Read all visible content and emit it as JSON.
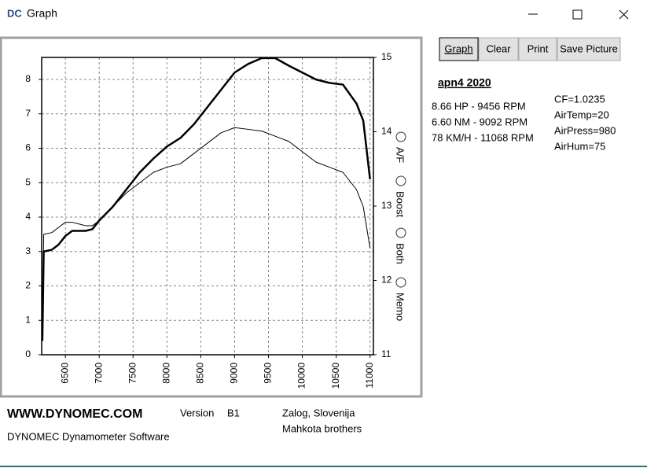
{
  "window": {
    "icon_text": "DC",
    "title": "Graph",
    "buttons": [
      "Graph",
      "Clear",
      "Print",
      "Save Picture"
    ],
    "radio_options": [
      "A/F",
      "Boost",
      "Both",
      "Memo"
    ],
    "run_name": "apn4  2020",
    "results": [
      "8.66 HP - 9456 RPM",
      "6.60 NM - 9092 RPM",
      "78 KM/H - 11068 RPM"
    ],
    "conditions": [
      "CF=1.0235",
      "AirTemp=20",
      "AirPress=980",
      "AirHum=75"
    ],
    "footer": {
      "site": "WWW.DYNOMEC.COM",
      "version_label": "Version",
      "version": "B1",
      "software": "DYNOMEC Dynamometer Software",
      "location": "Zalog, Slovenija",
      "authors": "Mahkota brothers"
    }
  },
  "chart_data": {
    "type": "line",
    "x": [
      6160,
      6180,
      6300,
      6400,
      6500,
      6600,
      6700,
      6800,
      6900,
      7000,
      7200,
      7400,
      7600,
      7800,
      8000,
      8200,
      8400,
      8600,
      8800,
      9000,
      9200,
      9400,
      9600,
      9800,
      10000,
      10200,
      10400,
      10600,
      10800,
      10900,
      11000
    ],
    "series": [
      {
        "color": "#000000",
        "width": 2.5,
        "values": [
          0.4,
          3.0,
          3.05,
          3.2,
          3.45,
          3.6,
          3.6,
          3.6,
          3.65,
          3.9,
          4.3,
          4.8,
          5.3,
          5.7,
          6.05,
          6.3,
          6.7,
          7.2,
          7.7,
          8.2,
          8.45,
          8.62,
          8.62,
          8.4,
          8.2,
          8.0,
          7.9,
          7.85,
          7.3,
          6.8,
          5.1
        ]
      },
      {
        "color": "#000000",
        "width": 1,
        "values": [
          0.5,
          3.5,
          3.55,
          3.7,
          3.85,
          3.85,
          3.8,
          3.75,
          3.75,
          3.9,
          4.3,
          4.7,
          5.0,
          5.3,
          5.45,
          5.55,
          5.85,
          6.15,
          6.45,
          6.6,
          6.55,
          6.5,
          6.35,
          6.2,
          5.9,
          5.6,
          5.45,
          5.3,
          4.8,
          4.3,
          3.1
        ]
      }
    ],
    "xlim": [
      6150,
      11050
    ],
    "xticks": [
      6500,
      7000,
      7500,
      8000,
      8500,
      9000,
      9500,
      10000,
      10500,
      11000
    ],
    "ylim": [
      0,
      8.64
    ],
    "yticks": [
      0,
      1,
      2,
      3,
      4,
      5,
      6,
      7,
      8
    ],
    "y2lim": [
      11,
      15
    ],
    "y2ticks": [
      11,
      12,
      13,
      14,
      15
    ],
    "grid": true
  }
}
